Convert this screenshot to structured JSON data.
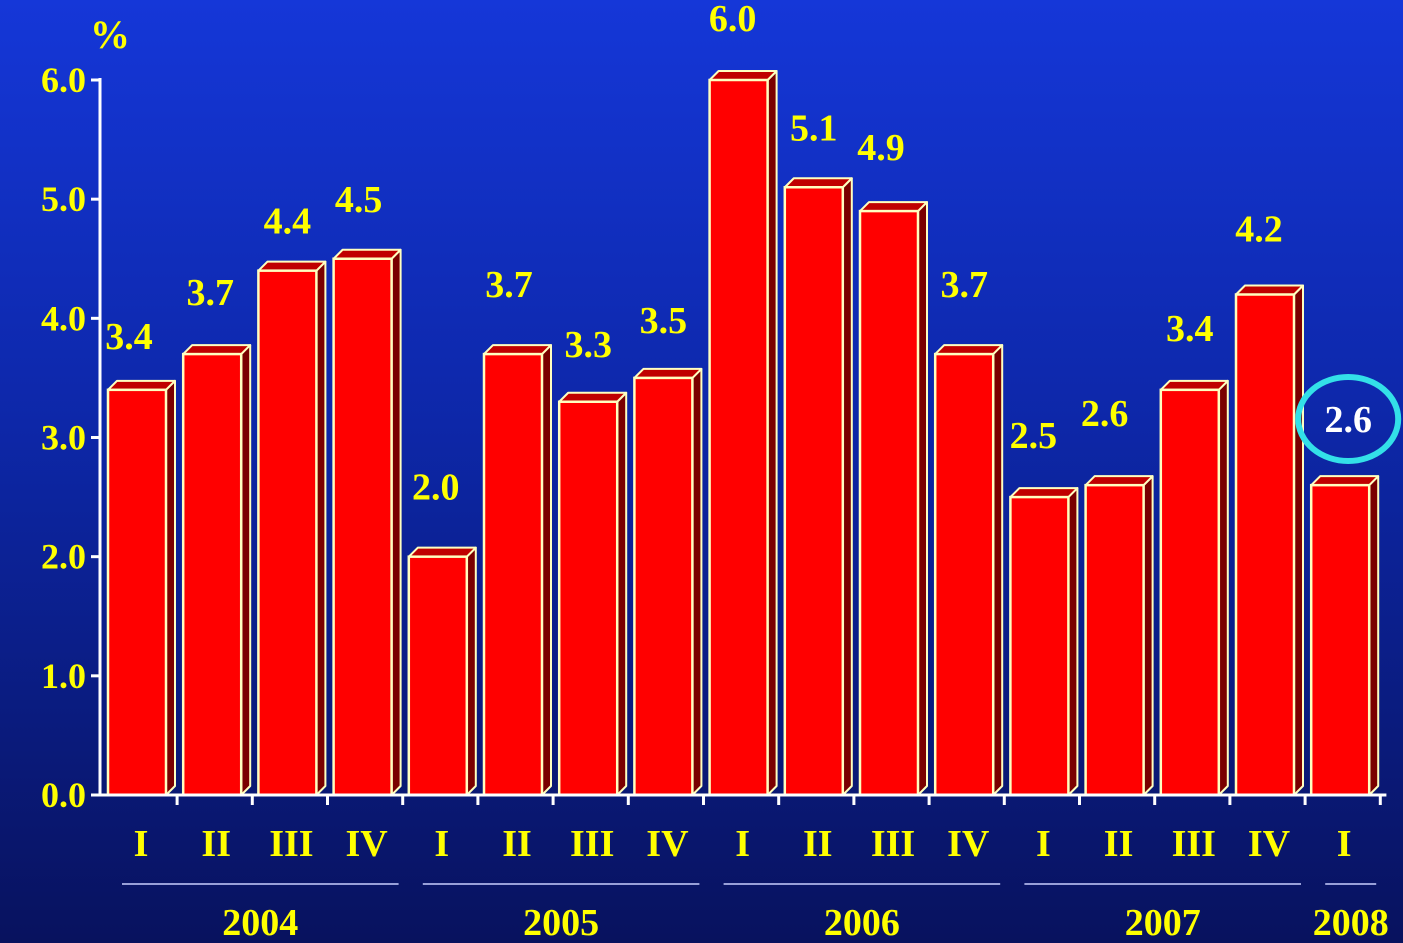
{
  "chart_data": {
    "type": "bar",
    "unit_label": "%",
    "title": "",
    "xlabel": "",
    "ylabel": "%",
    "ylim": [
      0,
      6
    ],
    "yticks": [
      "0.0",
      "1.0",
      "2.0",
      "3.0",
      "4.0",
      "5.0",
      "6.0"
    ],
    "grid": false,
    "legend": "none",
    "categories": [
      "I",
      "II",
      "III",
      "IV",
      "I",
      "II",
      "III",
      "IV",
      "I",
      "II",
      "III",
      "IV",
      "I",
      "II",
      "III",
      "IV",
      "I"
    ],
    "years": [
      {
        "label": "2004",
        "quarters": 4
      },
      {
        "label": "2005",
        "quarters": 4
      },
      {
        "label": "2006",
        "quarters": 4
      },
      {
        "label": "2007",
        "quarters": 4
      },
      {
        "label": "2008",
        "quarters": 1
      }
    ],
    "values": [
      3.4,
      3.7,
      4.4,
      4.5,
      2.0,
      3.7,
      3.3,
      3.5,
      6.0,
      5.1,
      4.9,
      3.7,
      2.5,
      2.6,
      3.4,
      4.2,
      2.6
    ],
    "value_labels": [
      "3.4",
      "3.7",
      "4.4",
      "4.5",
      "2.0",
      "3.7",
      "3.3",
      "3.5",
      "6.0",
      "5.1",
      "4.9",
      "3.7",
      "2.5",
      "2.6",
      "3.4",
      "4.2",
      "2.6"
    ],
    "highlight_index": 16,
    "colors": {
      "bar_front": "#ff0000",
      "bar_side": "#7a0000",
      "bar_top": "#c00000",
      "bar_edge": "#ffffc0",
      "text": "#ffff00",
      "axis": "#ffffff",
      "highlight_ring": "#33e0e8",
      "highlight_text": "#ffffff"
    }
  }
}
